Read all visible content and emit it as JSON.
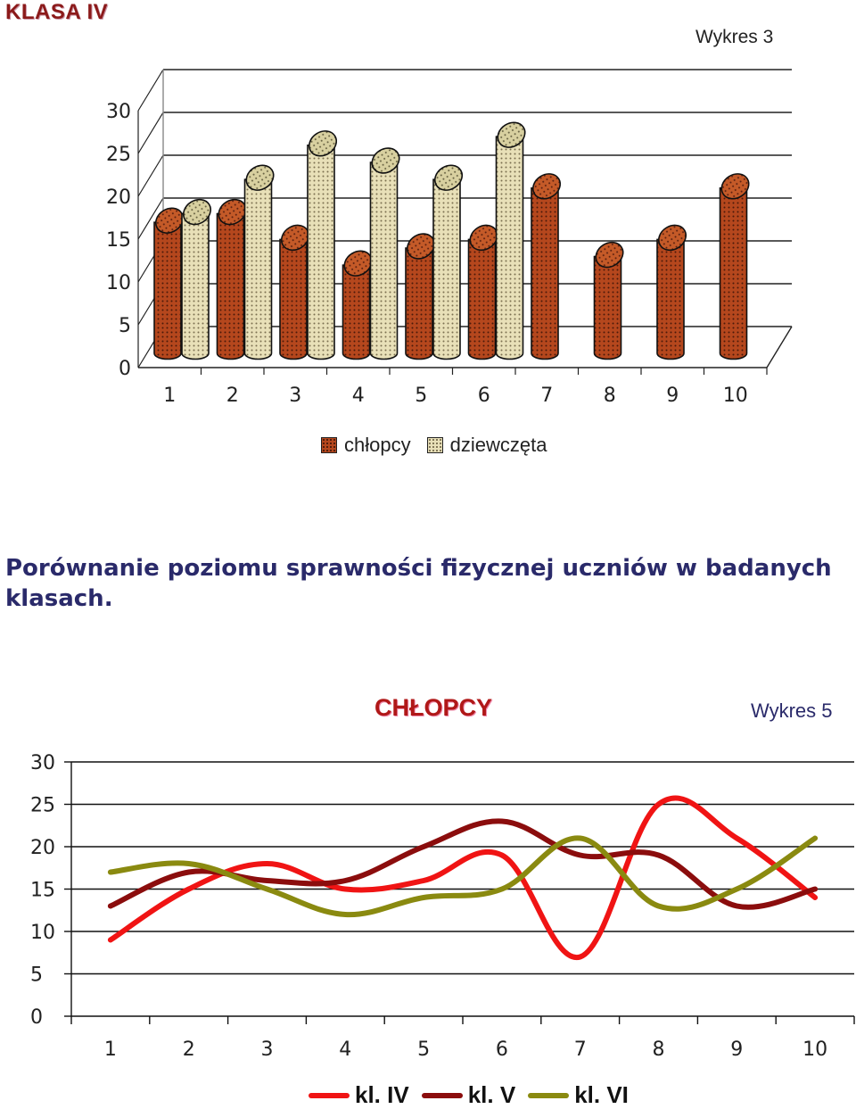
{
  "page_title": "KLASA IV",
  "comparison_text": "Porównanie poziomu sprawności fizycznej uczniów w badanych klasach.",
  "chart_data": [
    {
      "type": "bar",
      "label": "Wykres 3",
      "categories": [
        "1",
        "2",
        "3",
        "4",
        "5",
        "6",
        "7",
        "8",
        "9",
        "10"
      ],
      "y_ticks": [
        "0",
        "5",
        "10",
        "15",
        "20",
        "25",
        "30"
      ],
      "ylim": [
        0,
        30
      ],
      "legend_position": "bottom",
      "series": [
        {
          "name": "chłopcy",
          "color": "#b5471d",
          "values": [
            18,
            19,
            16,
            13,
            15,
            16,
            22,
            14,
            16,
            22
          ]
        },
        {
          "name": "dziewczęta",
          "color": "#e8e0b8",
          "values": [
            19,
            23,
            27,
            25,
            23,
            28,
            null,
            null,
            null,
            null
          ]
        }
      ]
    },
    {
      "type": "line",
      "title": "CHŁOPCY",
      "label": "Wykres 5",
      "categories": [
        "1",
        "2",
        "3",
        "4",
        "5",
        "6",
        "7",
        "8",
        "9",
        "10"
      ],
      "y_ticks": [
        "0",
        "5",
        "10",
        "15",
        "20",
        "25",
        "30"
      ],
      "ylim": [
        0,
        30
      ],
      "legend_position": "bottom",
      "series": [
        {
          "name": "kl. IV",
          "color": "#f01414",
          "values": [
            9,
            15,
            18,
            15,
            16,
            19,
            7,
            25,
            21,
            14
          ]
        },
        {
          "name": "kl. V",
          "color": "#8b0d0d",
          "values": [
            13,
            17,
            16,
            16,
            20,
            23,
            19,
            19,
            13,
            15
          ]
        },
        {
          "name": "kl. VI",
          "color": "#8a8a10",
          "values": [
            17,
            18,
            15,
            12,
            14,
            15,
            21,
            13,
            15,
            21
          ]
        }
      ]
    }
  ]
}
